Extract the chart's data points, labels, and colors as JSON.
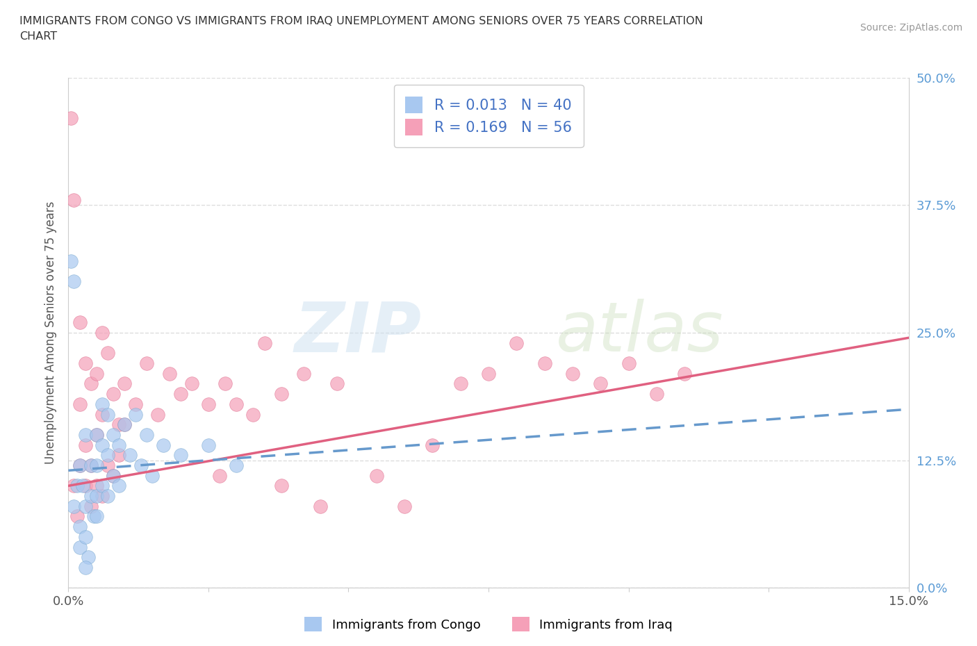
{
  "title_line1": "IMMIGRANTS FROM CONGO VS IMMIGRANTS FROM IRAQ UNEMPLOYMENT AMONG SENIORS OVER 75 YEARS CORRELATION",
  "title_line2": "CHART",
  "source": "Source: ZipAtlas.com",
  "ylabel": "Unemployment Among Seniors over 75 years",
  "xlim": [
    0.0,
    0.15
  ],
  "ylim": [
    0.0,
    0.5
  ],
  "xtick_positions": [
    0.0,
    0.025,
    0.05,
    0.075,
    0.1,
    0.125,
    0.15
  ],
  "xtick_labels": [
    "0.0%",
    "",
    "",
    "",
    "",
    "",
    "15.0%"
  ],
  "ytick_positions": [
    0.0,
    0.125,
    0.25,
    0.375,
    0.5
  ],
  "ytick_labels": [
    "0.0%",
    "12.5%",
    "25.0%",
    "37.5%",
    "50.0%"
  ],
  "congo_R": 0.013,
  "congo_N": 40,
  "iraq_R": 0.169,
  "iraq_N": 56,
  "congo_color": "#a8c8f0",
  "congo_edge_color": "#7aaad0",
  "iraq_color": "#f5a0b8",
  "iraq_edge_color": "#e07090",
  "congo_line_color": "#6699cc",
  "iraq_line_color": "#e06080",
  "legend_text_color": "#4472c4",
  "axis_color": "#cccccc",
  "grid_color": "#dddddd",
  "right_tick_color": "#5b9bd5",
  "ylabel_color": "#555555",
  "title_color": "#333333",
  "source_color": "#999999",
  "watermark_color": "#cce0f0",
  "congo_line_x0": 0.0,
  "congo_line_y0": 0.115,
  "congo_line_x1": 0.15,
  "congo_line_y1": 0.175,
  "iraq_line_x0": 0.0,
  "iraq_line_y0": 0.1,
  "iraq_line_x1": 0.15,
  "iraq_line_y1": 0.245,
  "congo_x": [
    0.0005,
    0.001,
    0.0015,
    0.001,
    0.002,
    0.002,
    0.0025,
    0.002,
    0.003,
    0.003,
    0.003,
    0.0035,
    0.004,
    0.004,
    0.0045,
    0.005,
    0.005,
    0.005,
    0.005,
    0.006,
    0.006,
    0.006,
    0.007,
    0.007,
    0.007,
    0.008,
    0.008,
    0.009,
    0.009,
    0.01,
    0.011,
    0.012,
    0.013,
    0.014,
    0.015,
    0.017,
    0.02,
    0.025,
    0.03,
    0.003
  ],
  "congo_y": [
    0.32,
    0.3,
    0.1,
    0.08,
    0.12,
    0.06,
    0.1,
    0.04,
    0.15,
    0.08,
    0.05,
    0.03,
    0.12,
    0.09,
    0.07,
    0.15,
    0.12,
    0.09,
    0.07,
    0.18,
    0.14,
    0.1,
    0.17,
    0.13,
    0.09,
    0.15,
    0.11,
    0.14,
    0.1,
    0.16,
    0.13,
    0.17,
    0.12,
    0.15,
    0.11,
    0.14,
    0.13,
    0.14,
    0.12,
    0.02
  ],
  "iraq_x": [
    0.0005,
    0.001,
    0.001,
    0.0015,
    0.002,
    0.002,
    0.003,
    0.003,
    0.004,
    0.004,
    0.005,
    0.005,
    0.006,
    0.006,
    0.007,
    0.008,
    0.009,
    0.01,
    0.012,
    0.014,
    0.016,
    0.018,
    0.02,
    0.022,
    0.025,
    0.028,
    0.03,
    0.033,
    0.035,
    0.038,
    0.042,
    0.048,
    0.055,
    0.06,
    0.065,
    0.07,
    0.075,
    0.08,
    0.085,
    0.09,
    0.095,
    0.1,
    0.105,
    0.11,
    0.002,
    0.003,
    0.004,
    0.005,
    0.006,
    0.007,
    0.008,
    0.009,
    0.01,
    0.045,
    0.027,
    0.038
  ],
  "iraq_y": [
    0.46,
    0.38,
    0.1,
    0.07,
    0.26,
    0.18,
    0.22,
    0.14,
    0.2,
    0.12,
    0.21,
    0.15,
    0.25,
    0.17,
    0.23,
    0.19,
    0.16,
    0.2,
    0.18,
    0.22,
    0.17,
    0.21,
    0.19,
    0.2,
    0.18,
    0.2,
    0.18,
    0.17,
    0.24,
    0.19,
    0.21,
    0.2,
    0.11,
    0.08,
    0.14,
    0.2,
    0.21,
    0.24,
    0.22,
    0.21,
    0.2,
    0.22,
    0.19,
    0.21,
    0.12,
    0.1,
    0.08,
    0.1,
    0.09,
    0.12,
    0.11,
    0.13,
    0.16,
    0.08,
    0.11,
    0.1
  ]
}
